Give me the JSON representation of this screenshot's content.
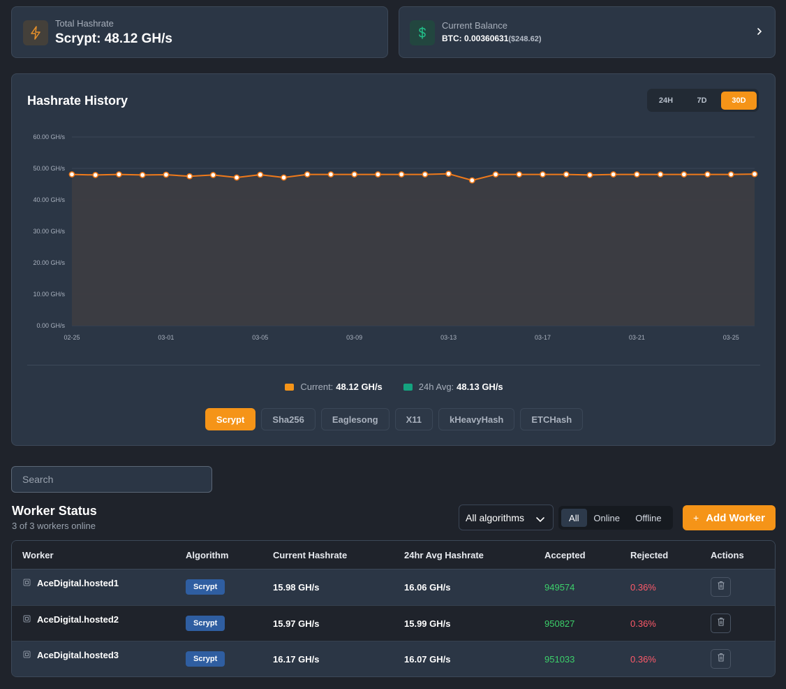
{
  "hashrate_card": {
    "label": "Total Hashrate",
    "value": "Scrypt: 48.12 GH/s"
  },
  "balance_card": {
    "label": "Current Balance",
    "value": "BTC: 0.00360631",
    "usd": "($248.62)"
  },
  "chart": {
    "title": "Hashrate History",
    "ranges": [
      "24H",
      "7D",
      "30D"
    ],
    "active_range": "30D",
    "legend_current_label": "Current:",
    "legend_current_value": "48.12 GH/s",
    "legend_avg_label": "24h Avg:",
    "legend_avg_value": "48.13 GH/s",
    "algorithms": [
      "Scrypt",
      "Sha256",
      "Eaglesong",
      "X11",
      "kHeavyHash",
      "ETCHash"
    ],
    "active_algorithm": "Scrypt"
  },
  "chart_data": {
    "type": "area",
    "title": "Hashrate History",
    "series": [
      {
        "name": "Current",
        "values": [
          48.1,
          47.9,
          48.1,
          47.9,
          48.0,
          47.5,
          47.9,
          47.1,
          48.0,
          47.1,
          48.1,
          48.1,
          48.1,
          48.1,
          48.1,
          48.1,
          48.3,
          46.2,
          48.1,
          48.1,
          48.1,
          48.1,
          47.9,
          48.1,
          48.1,
          48.1,
          48.1,
          48.1,
          48.1,
          48.2
        ]
      }
    ],
    "x_tick_labels": [
      "02-25",
      "03-01",
      "03-05",
      "03-09",
      "03-13",
      "03-17",
      "03-21",
      "03-25"
    ],
    "y_tick_labels": [
      "0.00 GH/s",
      "10.00 GH/s",
      "20.00 GH/s",
      "30.00 GH/s",
      "40.00 GH/s",
      "50.00 GH/s",
      "60.00 GH/s"
    ],
    "ylim": [
      0,
      60
    ],
    "grid": true,
    "colors": {
      "line": "#f07a1a",
      "area": "#3c3d42",
      "avg": "#14a37f"
    }
  },
  "search": {
    "placeholder": "Search"
  },
  "workers": {
    "title": "Worker Status",
    "subtitle": "3 of 3 workers online",
    "algo_select": "All algorithms",
    "filters": [
      "All",
      "Online",
      "Offline"
    ],
    "add_label": "Add Worker",
    "columns": [
      "Worker",
      "Algorithm",
      "Current Hashrate",
      "24hr Avg Hashrate",
      "Accepted",
      "Rejected",
      "Actions"
    ],
    "rows": [
      {
        "name": "AceDigital.hosted1",
        "algorithm": "Scrypt",
        "current": "15.98 GH/s",
        "avg": "16.06 GH/s",
        "accepted": "949574",
        "rejected": "0.36%"
      },
      {
        "name": "AceDigital.hosted2",
        "algorithm": "Scrypt",
        "current": "15.97 GH/s",
        "avg": "15.99 GH/s",
        "accepted": "950827",
        "rejected": "0.36%"
      },
      {
        "name": "AceDigital.hosted3",
        "algorithm": "Scrypt",
        "current": "16.17 GH/s",
        "avg": "16.07 GH/s",
        "accepted": "951033",
        "rejected": "0.36%"
      }
    ]
  },
  "colors": {
    "accent": "#f59418",
    "accepted": "#3ccf6a",
    "rejected": "#ff5a6a",
    "badge": "#2f5ea1"
  }
}
